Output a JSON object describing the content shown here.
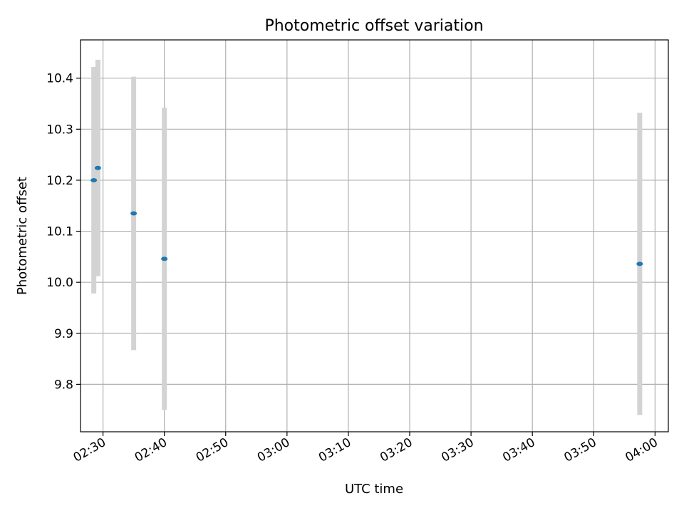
{
  "chart_data": {
    "type": "scatter",
    "title": "Photometric offset variation",
    "xlabel": "UTC time",
    "ylabel": "Photometric offset",
    "x_axis_kind": "time",
    "xlim": [
      "02:26:20",
      "04:02:10"
    ],
    "ylim": [
      9.707,
      10.475
    ],
    "grid": true,
    "x_ticks": [
      "02:30",
      "02:40",
      "02:50",
      "03:00",
      "03:10",
      "03:20",
      "03:30",
      "03:40",
      "03:50",
      "04:00"
    ],
    "y_ticks": [
      9.8,
      9.9,
      10.0,
      10.1,
      10.2,
      10.3,
      10.4
    ],
    "y_tick_labels": [
      "9.8",
      "9.9",
      "10.0",
      "10.1",
      "10.2",
      "10.3",
      "10.4"
    ],
    "series": [
      {
        "points": [
          {
            "x": "02:28:30",
            "y": 10.2,
            "error": 0.222
          },
          {
            "x": "02:29:10",
            "y": 10.224,
            "error": 0.212
          },
          {
            "x": "02:35:00",
            "y": 10.135,
            "error": 0.268
          },
          {
            "x": "02:40:00",
            "y": 10.046,
            "error": 0.296
          },
          {
            "x": "03:57:30",
            "y": 10.036,
            "error": 0.296
          }
        ]
      }
    ],
    "colors": {
      "marker": "#1f77b4",
      "error_bar": "#d3d3d3",
      "grid": "#b0b0b0"
    }
  }
}
